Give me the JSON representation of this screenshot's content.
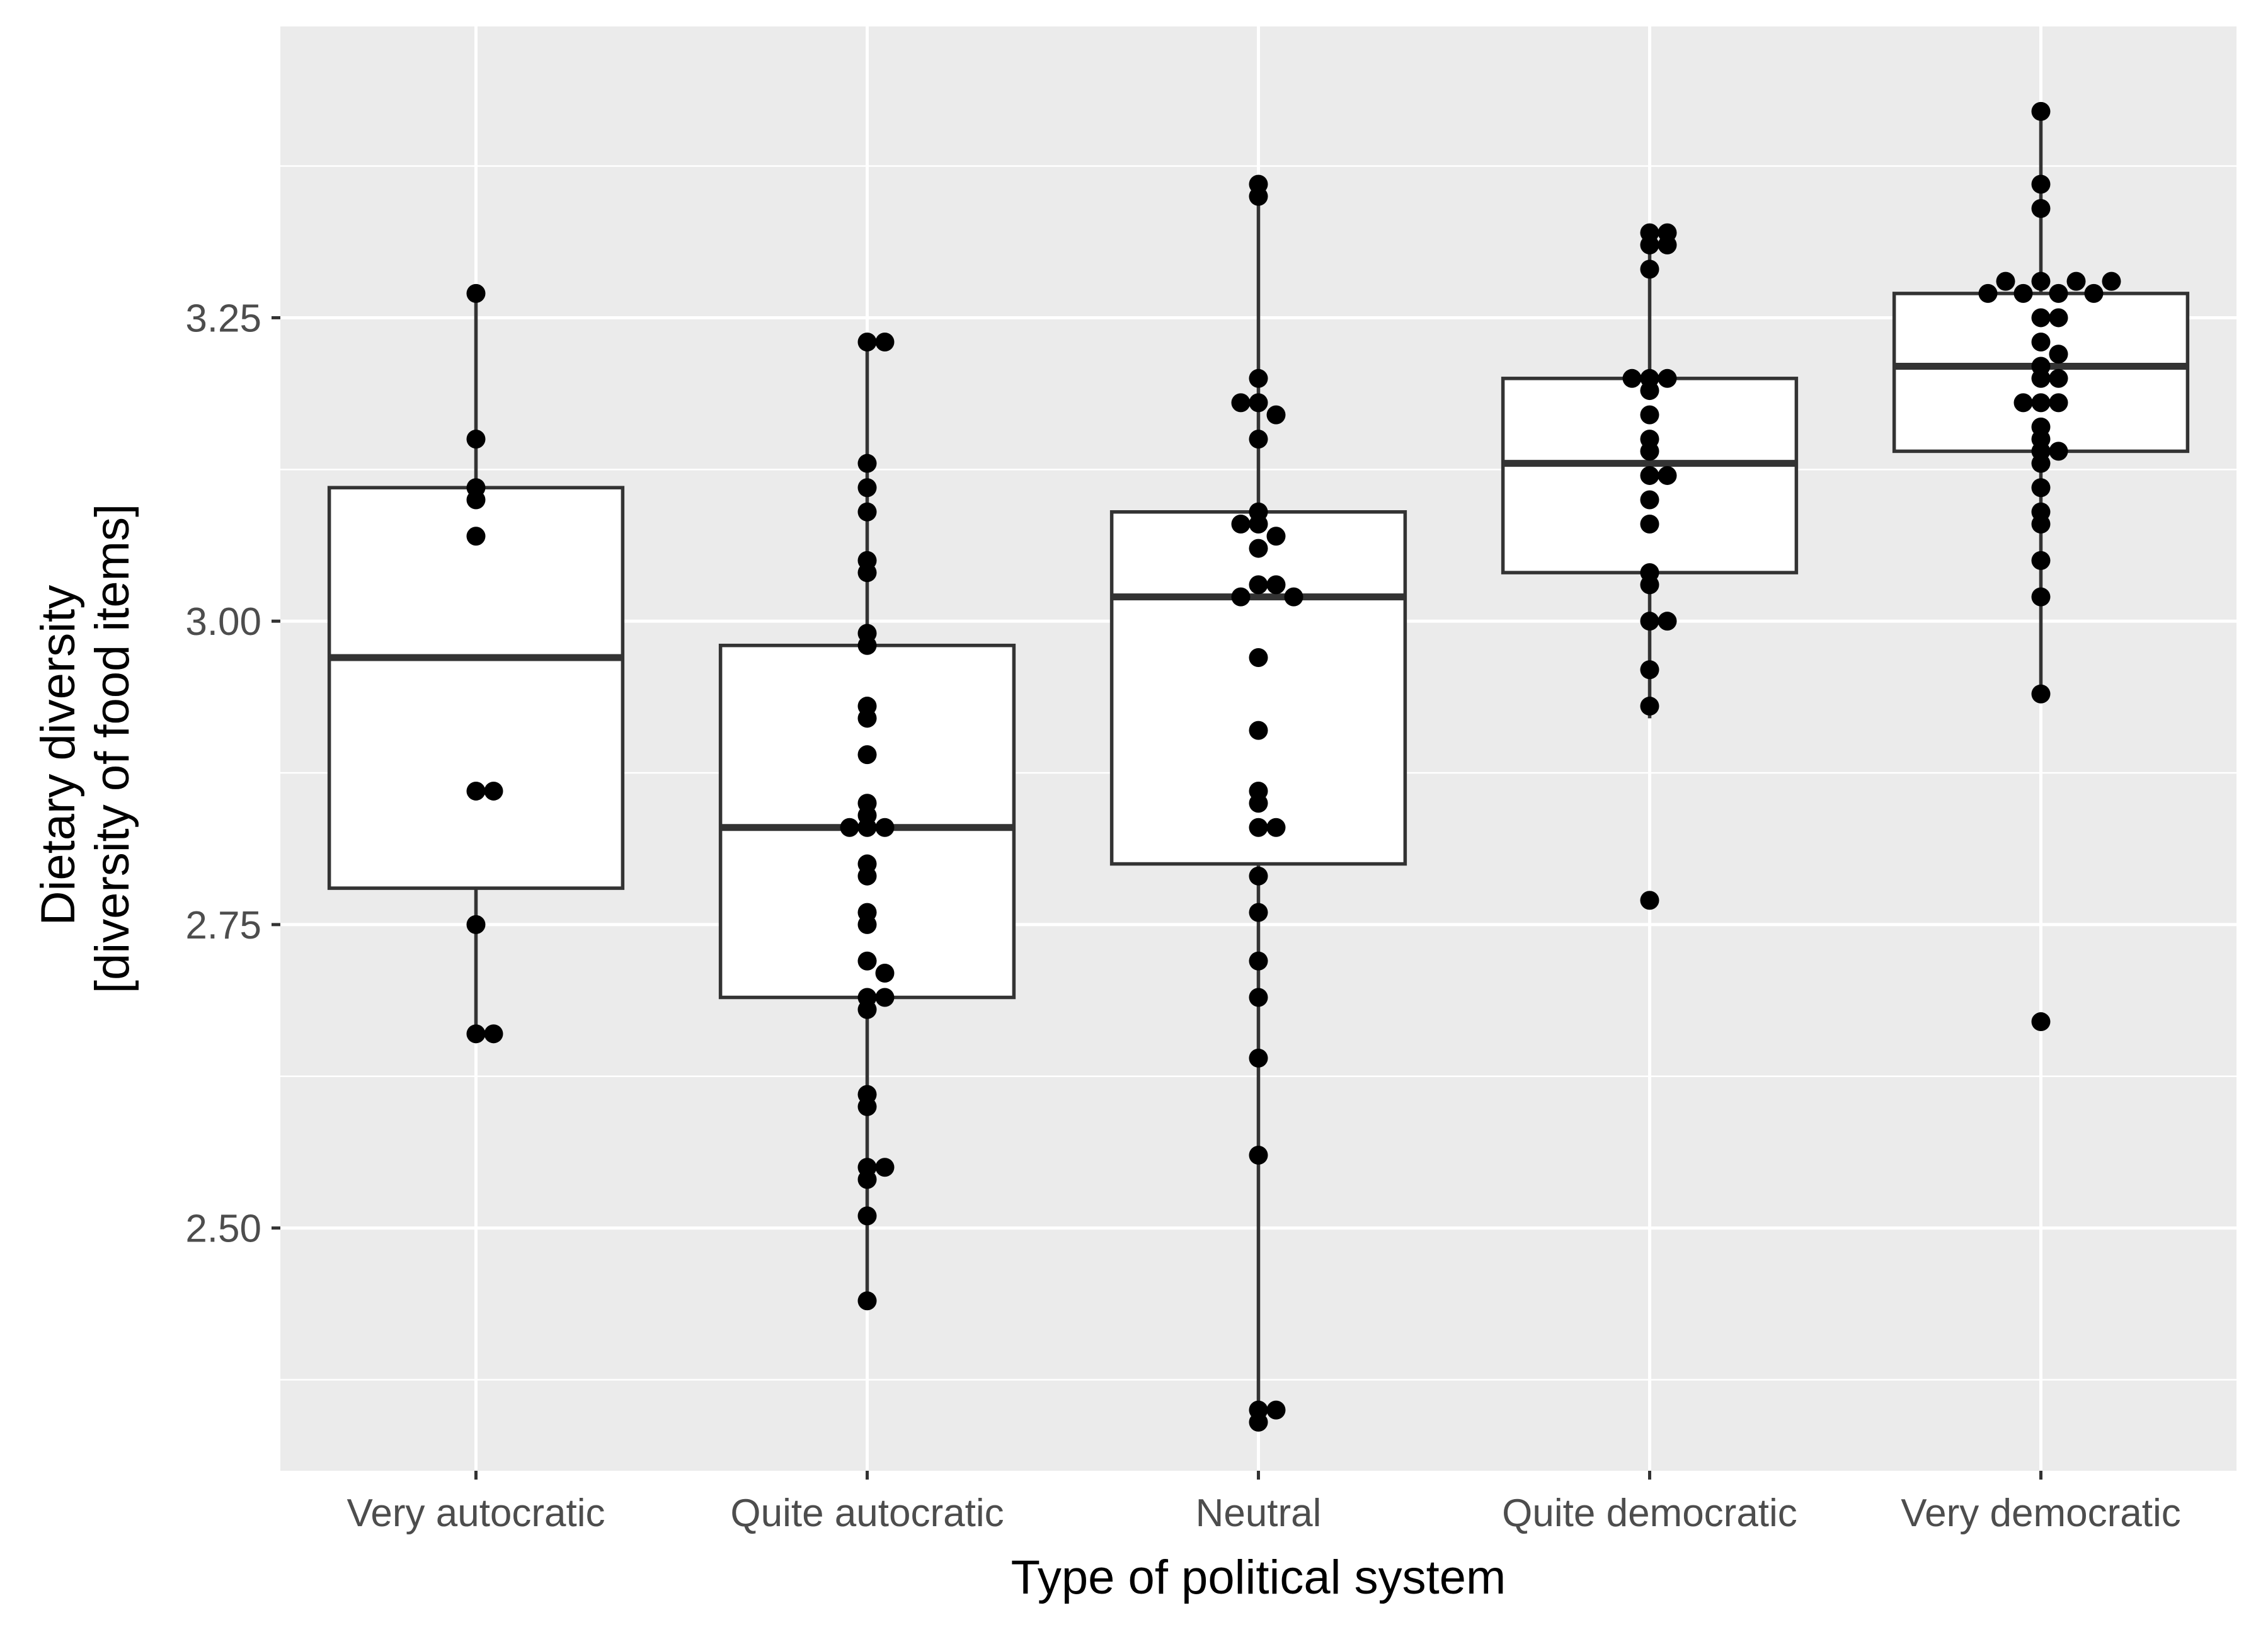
{
  "chart_data": {
    "type": "boxplot",
    "xlabel": "Type of political system",
    "ylabel_lines": [
      "Dietary diversity",
      "[diversity of food items]"
    ],
    "ylim": [
      2.3,
      3.49
    ],
    "yticks": [
      2.5,
      2.75,
      3.0,
      3.25
    ],
    "ytick_labels": [
      "2.50",
      "2.75",
      "3.00",
      "3.25"
    ],
    "grid": true,
    "categories": [
      "Very autocratic",
      "Quite autocratic",
      "Neutral",
      "Quite democratic",
      "Very democratic"
    ],
    "boxes": [
      {
        "category": "Very autocratic",
        "lower_whisker": 2.66,
        "q1": 2.78,
        "median": 2.97,
        "q3": 3.11,
        "upper_whisker": 3.27
      },
      {
        "category": "Quite autocratic",
        "lower_whisker": 2.44,
        "q1": 2.69,
        "median": 2.83,
        "q3": 2.98,
        "upper_whisker": 3.23
      },
      {
        "category": "Neutral",
        "lower_whisker": 2.34,
        "q1": 2.8,
        "median": 3.02,
        "q3": 3.09,
        "upper_whisker": 3.36
      },
      {
        "category": "Quite democratic",
        "lower_whisker": 2.92,
        "q1": 3.04,
        "median": 3.13,
        "q3": 3.2,
        "upper_whisker": 3.32
      },
      {
        "category": "Very democratic",
        "lower_whisker": 2.94,
        "q1": 3.14,
        "median": 3.21,
        "q3": 3.27,
        "upper_whisker": 3.42
      }
    ],
    "points": [
      {
        "category": "Very autocratic",
        "values": [
          3.27,
          3.15,
          3.11,
          3.1,
          3.07,
          2.86,
          2.86,
          2.75,
          2.66,
          2.66
        ]
      },
      {
        "category": "Quite autocratic",
        "values": [
          3.23,
          3.23,
          3.13,
          3.11,
          3.09,
          3.05,
          3.04,
          2.99,
          2.98,
          2.93,
          2.92,
          2.89,
          2.85,
          2.83,
          2.83,
          2.83,
          2.84,
          2.79,
          2.8,
          2.76,
          2.75,
          2.72,
          2.71,
          2.69,
          2.68,
          2.69,
          2.61,
          2.6,
          2.55,
          2.55,
          2.54,
          2.51,
          2.44
        ]
      },
      {
        "category": "Neutral",
        "values": [
          3.35,
          3.36,
          3.2,
          3.18,
          3.17,
          3.18,
          3.15,
          3.09,
          3.08,
          3.07,
          3.08,
          3.06,
          3.03,
          3.03,
          3.02,
          3.02,
          2.97,
          2.91,
          2.86,
          2.85,
          2.83,
          2.83,
          2.79,
          2.76,
          2.72,
          2.69,
          2.64,
          2.56,
          2.35,
          2.34,
          2.35
        ]
      },
      {
        "category": "Quite democratic",
        "values": [
          3.32,
          3.31,
          3.31,
          3.32,
          3.29,
          3.2,
          3.19,
          3.2,
          3.2,
          3.17,
          3.15,
          3.14,
          3.12,
          3.12,
          3.1,
          3.08,
          3.04,
          3.03,
          3.0,
          3.0,
          2.96,
          2.93,
          2.77
        ]
      },
      {
        "category": "Very democratic",
        "values": [
          3.42,
          3.36,
          3.34,
          3.28,
          3.27,
          3.27,
          3.28,
          3.28,
          3.27,
          3.27,
          3.28,
          3.25,
          3.25,
          3.23,
          3.22,
          3.21,
          3.2,
          3.2,
          3.18,
          3.18,
          3.18,
          3.16,
          3.15,
          3.14,
          3.14,
          3.13,
          3.11,
          3.08,
          3.09,
          3.05,
          3.02,
          2.94,
          2.67
        ]
      }
    ],
    "colors": {
      "panel_background": "#ebebeb",
      "grid_line": "#ffffff",
      "box_fill": "#ffffff",
      "box_stroke": "#333333",
      "point": "#000000",
      "tick_text": "#4d4d4d",
      "title_text": "#000000"
    }
  }
}
